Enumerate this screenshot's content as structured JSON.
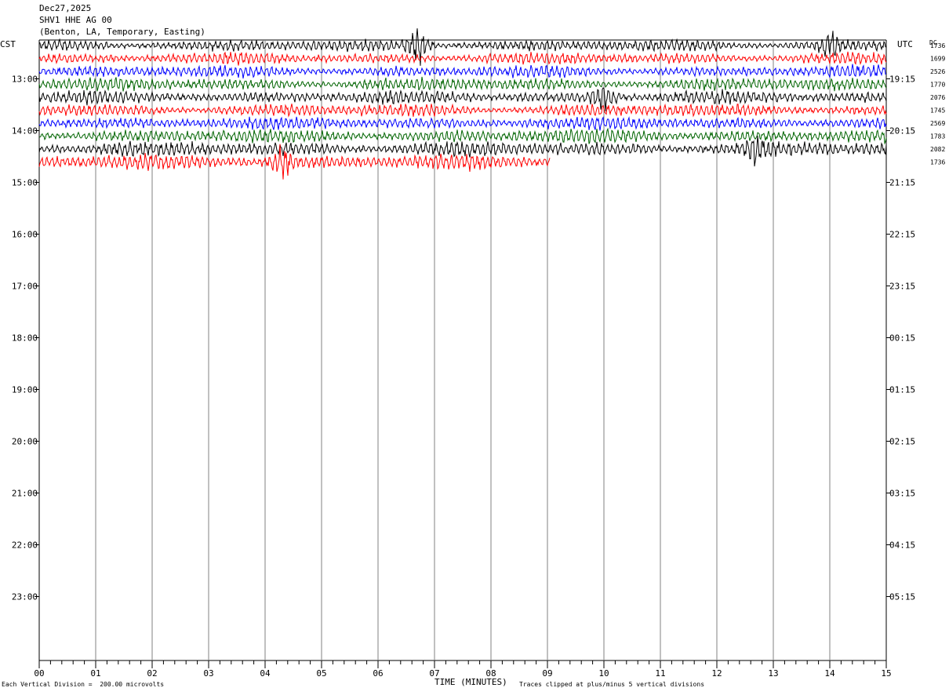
{
  "header": {
    "date": "Dec27,2025",
    "station": "SHV1 HHE AG 00",
    "location": "(Benton, LA, Temporary, Easting)"
  },
  "left_zone": "CST",
  "right_zone": "UTC",
  "dc_label": "DC",
  "footer": {
    "scale_note": "Each Vertical Division =  200.00 microvolts",
    "x_title": "TIME (MINUTES)",
    "clip_note": "Traces clipped at plus/minus 5 vertical divisions"
  },
  "chart_data": {
    "type": "line",
    "title": "SHV1 HHE AG 00",
    "xlabel": "TIME (MINUTES)",
    "xlim": [
      0,
      15
    ],
    "x_ticks": [
      "00",
      "01",
      "02",
      "03",
      "04",
      "05",
      "06",
      "07",
      "08",
      "09",
      "10",
      "11",
      "12",
      "13",
      "14",
      "15"
    ],
    "left_time_labels": [
      "13:00",
      "14:00",
      "15:00",
      "16:00",
      "17:00",
      "18:00",
      "19:00",
      "20:00",
      "21:00",
      "22:00",
      "23:00"
    ],
    "right_time_labels": [
      "19:15",
      "20:15",
      "21:15",
      "22:15",
      "23:15",
      "00:15",
      "01:15",
      "02:15",
      "03:15",
      "04:15",
      "05:15"
    ],
    "first_row_hour": 12,
    "first_row_minute": 15,
    "row_minutes": 15,
    "color_cycle": [
      "#000000",
      "#ff0000",
      "#0000ff",
      "#006400"
    ],
    "dc_offsets": [
      "1736",
      "1699",
      "2526",
      "1770",
      "2076",
      "1745",
      "2569",
      "1783",
      "2082",
      "1736"
    ],
    "traces": [
      {
        "row": 0,
        "end_minute": 15,
        "amplitude": 0.55,
        "events": [
          {
            "t": 6.7,
            "amp": 1.6
          },
          {
            "t": 14.0,
            "amp": 0.9
          }
        ]
      },
      {
        "row": 1,
        "end_minute": 15,
        "amplitude": 0.55,
        "events": []
      },
      {
        "row": 2,
        "end_minute": 15,
        "amplitude": 0.55,
        "events": []
      },
      {
        "row": 3,
        "end_minute": 15,
        "amplitude": 0.6,
        "events": []
      },
      {
        "row": 4,
        "end_minute": 15,
        "amplitude": 0.6,
        "events": [
          {
            "t": 10.0,
            "amp": 0.9
          }
        ]
      },
      {
        "row": 5,
        "end_minute": 15,
        "amplitude": 0.6,
        "events": []
      },
      {
        "row": 6,
        "end_minute": 15,
        "amplitude": 0.6,
        "events": []
      },
      {
        "row": 7,
        "end_minute": 15,
        "amplitude": 0.65,
        "events": []
      },
      {
        "row": 8,
        "end_minute": 15,
        "amplitude": 0.7,
        "events": [
          {
            "t": 12.7,
            "amp": 1.0
          }
        ]
      },
      {
        "row": 9,
        "end_minute": 9.05,
        "amplitude": 0.7,
        "events": [
          {
            "t": 4.3,
            "amp": 1.0
          }
        ]
      }
    ]
  }
}
